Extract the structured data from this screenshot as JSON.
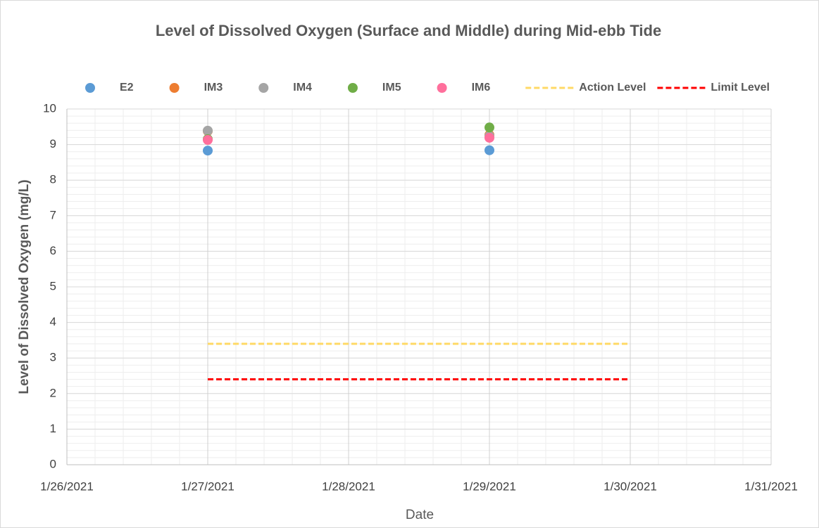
{
  "chart_data": {
    "type": "scatter",
    "title": "Level of Dissolved Oxygen (Surface and Middle) during Mid-ebb Tide",
    "x_label": "Date",
    "y_label": "Level of Dissolved Oxygen (mg/L)",
    "xlim": [
      "1/26/2021",
      "1/31/2021"
    ],
    "xticks": [
      "1/26/2021",
      "1/27/2021",
      "1/28/2021",
      "1/29/2021",
      "1/30/2021",
      "1/31/2021"
    ],
    "ylim": [
      0,
      10
    ],
    "yticks": [
      0,
      1,
      2,
      3,
      4,
      5,
      6,
      7,
      8,
      9,
      10
    ],
    "grid": true,
    "legend": "top",
    "series": [
      {
        "name": "E2",
        "color": "#5b9bd5",
        "x": [
          "1/27/2021",
          "1/29/2021"
        ],
        "values": [
          8.83,
          8.84
        ]
      },
      {
        "name": "IM3",
        "color": "#ed7d31",
        "x": [
          "1/27/2021",
          "1/29/2021"
        ],
        "values": [
          9.38,
          9.27
        ]
      },
      {
        "name": "IM4",
        "color": "#a5a5a5",
        "x": [
          "1/27/2021",
          "1/29/2021"
        ],
        "values": [
          9.39,
          9.24
        ]
      },
      {
        "name": "IM5",
        "color": "#70ad47",
        "x": [
          "1/27/2021",
          "1/29/2021"
        ],
        "values": [
          9.15,
          9.48
        ]
      },
      {
        "name": "IM6",
        "color": "#ff6f9c",
        "x": [
          "1/27/2021",
          "1/29/2021"
        ],
        "values": [
          9.13,
          9.19
        ]
      },
      {
        "name": "Action Level",
        "color": "#ffd966",
        "line_style": "dashed",
        "x": [
          "1/27/2021",
          "1/30/2021"
        ],
        "values": [
          3.4,
          3.4
        ]
      },
      {
        "name": "Limit Level",
        "color": "#ff0000",
        "line_style": "dashed",
        "x": [
          "1/27/2021",
          "1/30/2021"
        ],
        "values": [
          2.4,
          2.4
        ]
      }
    ]
  }
}
